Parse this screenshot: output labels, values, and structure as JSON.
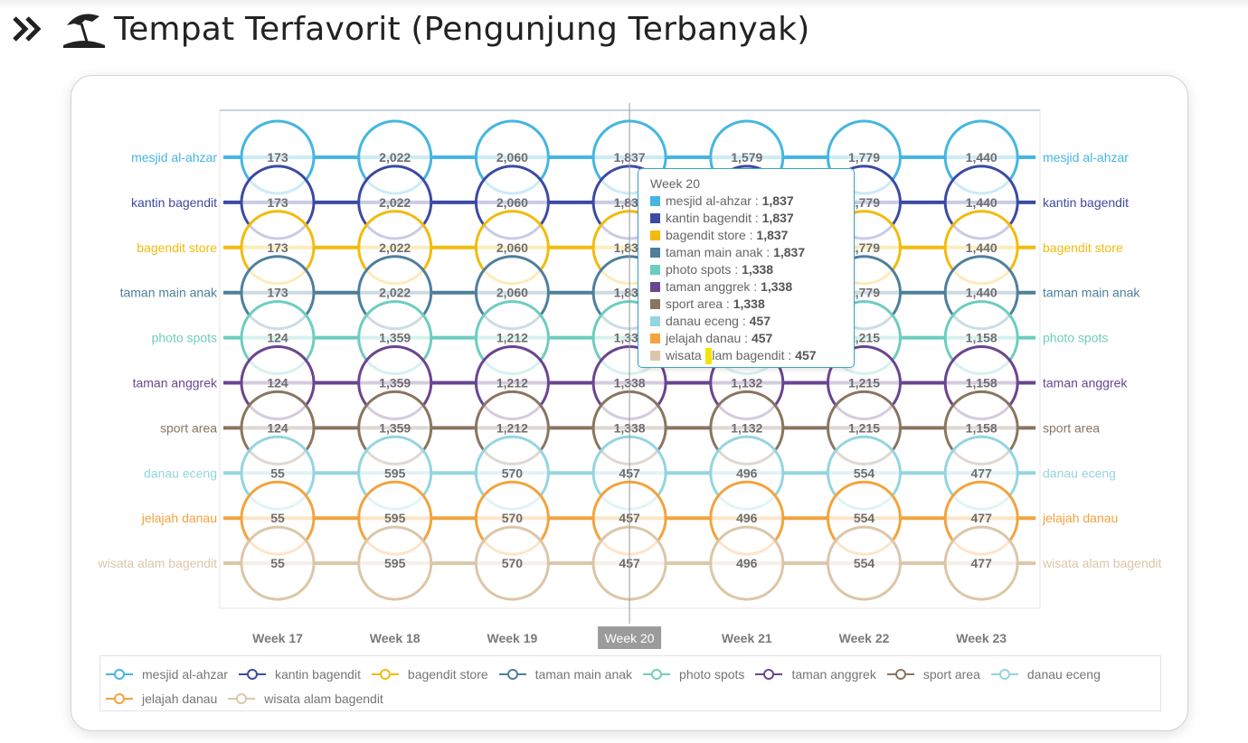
{
  "header": {
    "title": "Tempat Terfavorit (Pengunjung Terbanyak)",
    "chevron_icon": "double-chevron-right-icon",
    "umbrella_icon": "beach-umbrella-icon"
  },
  "chart_data": {
    "type": "line",
    "categories": [
      "Week 17",
      "Week 18",
      "Week 19",
      "Week 20",
      "Week 21",
      "Week 22",
      "Week 23"
    ],
    "highlighted_category": "Week 20",
    "series": [
      {
        "name": "mesjid al-ahzar",
        "color": "#45b6e1",
        "values": [
          173,
          2022,
          2060,
          1837,
          1579,
          1779,
          1440
        ],
        "labels": [
          "173",
          "2,022",
          "2,060",
          "1,837",
          "1,579",
          "1,779",
          "1,440"
        ]
      },
      {
        "name": "kantin bagendit",
        "color": "#3c4aa3",
        "values": [
          173,
          2022,
          2060,
          1837,
          1579,
          1779,
          1440
        ],
        "labels": [
          "173",
          "2,022",
          "2,060",
          "1,837",
          "1,579",
          "1,779",
          "1,440"
        ]
      },
      {
        "name": "bagendit store",
        "color": "#f2bb0d",
        "values": [
          173,
          2022,
          2060,
          1837,
          1579,
          1779,
          1440
        ],
        "labels": [
          "173",
          "2,022",
          "2,060",
          "1,837",
          "1,579",
          "1,779",
          "1,440"
        ]
      },
      {
        "name": "taman main anak",
        "color": "#4e7f9c",
        "values": [
          173,
          2022,
          2060,
          1837,
          1579,
          1779,
          1440
        ],
        "labels": [
          "173",
          "2,022",
          "2,060",
          "1,837",
          "1,579",
          "1,779",
          "1,440"
        ]
      },
      {
        "name": "photo spots",
        "color": "#6dcdbf",
        "values": [
          124,
          1359,
          1212,
          1338,
          1132,
          1215,
          1158
        ],
        "labels": [
          "124",
          "1,359",
          "1,212",
          "1,338",
          "1,132",
          "1,215",
          "1,158"
        ]
      },
      {
        "name": "taman anggrek",
        "color": "#6a4590",
        "values": [
          124,
          1359,
          1212,
          1338,
          1132,
          1215,
          1158
        ],
        "labels": [
          "124",
          "1,359",
          "1,212",
          "1,338",
          "1,132",
          "1,215",
          "1,158"
        ]
      },
      {
        "name": "sport area",
        "color": "#8a7560",
        "values": [
          124,
          1359,
          1212,
          1338,
          1132,
          1215,
          1158
        ],
        "labels": [
          "124",
          "1,359",
          "1,212",
          "1,338",
          "1,132",
          "1,215",
          "1,158"
        ]
      },
      {
        "name": "danau eceng",
        "color": "#94d5e0",
        "values": [
          55,
          595,
          570,
          457,
          496,
          554,
          477
        ],
        "labels": [
          "55",
          "595",
          "570",
          "457",
          "496",
          "554",
          "477"
        ]
      },
      {
        "name": "jelajah danau",
        "color": "#f3a33d",
        "values": [
          55,
          595,
          570,
          457,
          496,
          554,
          477
        ],
        "labels": [
          "55",
          "595",
          "570",
          "457",
          "496",
          "554",
          "477"
        ]
      },
      {
        "name": "wisata alam bagendit",
        "color": "#dcc6a8",
        "values": [
          55,
          595,
          570,
          457,
          496,
          554,
          477
        ],
        "labels": [
          "55",
          "595",
          "570",
          "457",
          "496",
          "554",
          "477"
        ]
      }
    ],
    "legend_position": "bottom",
    "grid": false
  },
  "tooltip": {
    "title": "Week 20",
    "rows": [
      {
        "name": "mesjid al-ahzar",
        "value": "1,837",
        "color": "#45b6e1"
      },
      {
        "name": "kantin bagendit",
        "value": "1,837",
        "color": "#3c4aa3"
      },
      {
        "name": "bagendit store",
        "value": "1,837",
        "color": "#f2bb0d"
      },
      {
        "name": "taman main anak",
        "value": "1,837",
        "color": "#4e7f9c"
      },
      {
        "name": "photo spots",
        "value": "1,338",
        "color": "#6dcdbf"
      },
      {
        "name": "taman anggrek",
        "value": "1,338",
        "color": "#6a4590"
      },
      {
        "name": "sport area",
        "value": "1,338",
        "color": "#8a7560"
      },
      {
        "name": "danau eceng",
        "value": "457",
        "color": "#94d5e0"
      },
      {
        "name": "jelajah danau",
        "value": "457",
        "color": "#f3a33d"
      },
      {
        "name": "wisata alam bagendit",
        "value": "457",
        "color": "#dcc6a8"
      }
    ]
  }
}
